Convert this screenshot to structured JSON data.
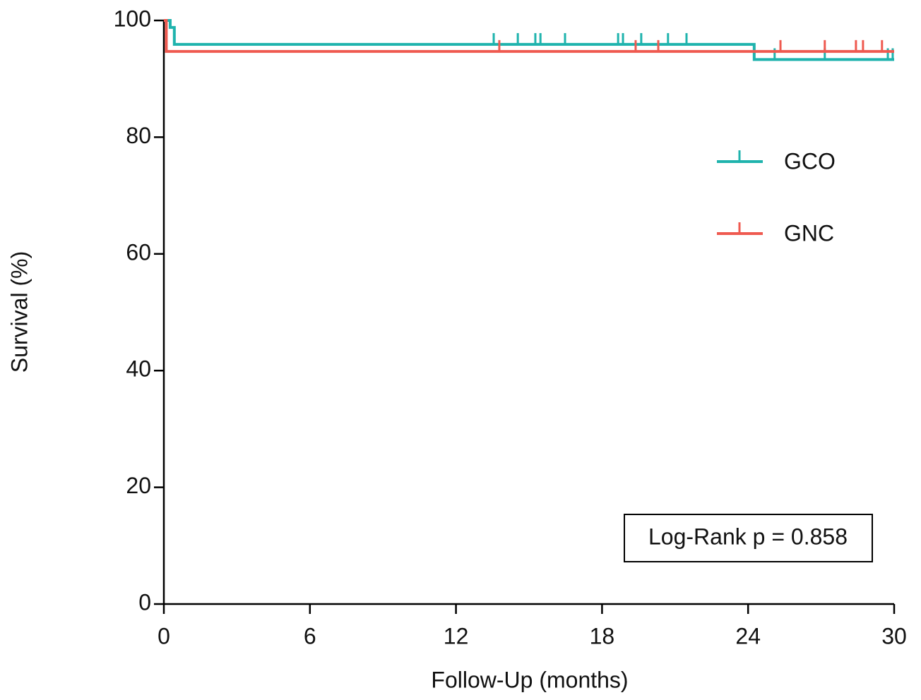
{
  "chart_data": {
    "type": "kaplan-meier",
    "xlabel": "Follow-Up (months)",
    "ylabel": "Survival (%)",
    "xlim": [
      0,
      30
    ],
    "xticks": [
      0,
      6,
      12,
      18,
      24,
      30
    ],
    "ylim": [
      0,
      100
    ],
    "yticks": [
      0,
      20,
      40,
      60,
      80,
      100
    ],
    "annotation": "Log-Rank p = 0.858",
    "series": [
      {
        "name": "GCO",
        "color": "#1fb3ad",
        "x": [
          0,
          0.26,
          0.43,
          24.25,
          30
        ],
        "values": [
          100,
          98.8,
          95.9,
          93.3,
          93.3
        ],
        "censor_x": [
          13.55,
          14.54,
          15.26,
          15.47,
          16.48,
          18.66,
          18.86,
          19.61,
          20.71,
          21.47,
          25.09,
          27.15,
          29.74,
          29.94
        ],
        "censor_values": [
          95.9,
          95.9,
          95.9,
          95.9,
          95.9,
          95.9,
          95.9,
          95.9,
          95.9,
          95.9,
          93.3,
          93.3,
          93.3,
          93.3
        ]
      },
      {
        "name": "GNC",
        "color": "#ef5a50",
        "x": [
          0,
          0.1,
          30
        ],
        "values": [
          100,
          94.7,
          94.7
        ],
        "censor_x": [
          13.78,
          19.38,
          20.31,
          25.33,
          27.15,
          28.43,
          28.72,
          29.5
        ],
        "censor_values": [
          94.7,
          94.7,
          94.7,
          94.7,
          94.7,
          94.7,
          94.7,
          94.7
        ]
      }
    ]
  }
}
